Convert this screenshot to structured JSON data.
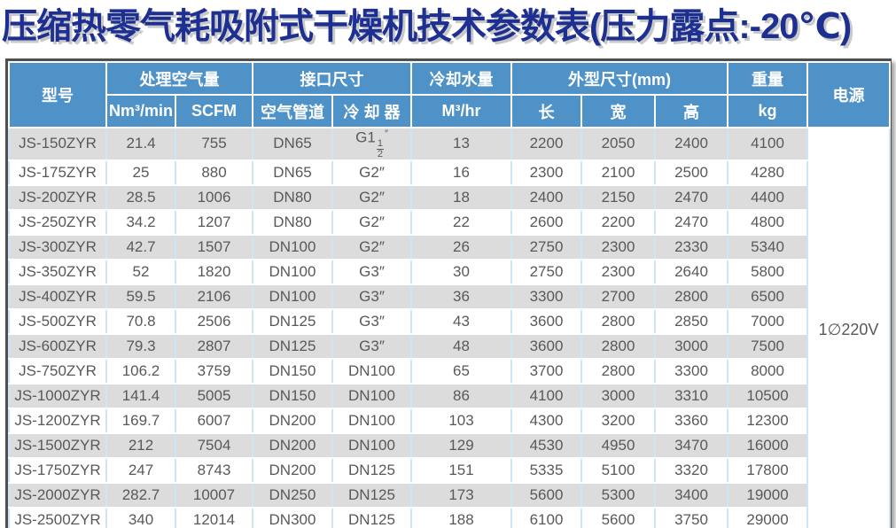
{
  "title": "压缩热零气耗吸附式干燥机技术参数表(压力露点:-20℃)",
  "colors": {
    "title_text": "#1d3091",
    "header_bg": "#4e92c8",
    "header_text": "#ffffff",
    "stripe_row": "#dcdcdc",
    "plain_row": "#ffffff",
    "data_text": "#595959",
    "grid_line": "#cde6f6",
    "outer_border": "#4f4f4f"
  },
  "table": {
    "headers": {
      "model": "型号",
      "air_capacity": "处理空气量",
      "air_units": [
        "Nm³/min",
        "SCFM"
      ],
      "interface": "接口尺寸",
      "interface_subs": [
        "空气管道",
        "冷 却 器"
      ],
      "cooling_water": "冷却水量",
      "cooling_water_unit": "M³/hr",
      "dimensions": "外型尺寸(mm)",
      "dimension_subs": [
        "长",
        "宽",
        "高"
      ],
      "weight": "重量",
      "weight_unit": "kg",
      "power": "电源"
    },
    "power_value": "1∅220V",
    "columns": [
      "model",
      "nm3-min",
      "scfm",
      "air-pipe",
      "cooler",
      "water",
      "length",
      "width",
      "height",
      "weight-kg"
    ],
    "rows": [
      [
        "JS-150ZYR",
        "21.4",
        "755",
        "DN65",
        "G1½″",
        "13",
        "2200",
        "2050",
        "2400",
        "4100"
      ],
      [
        "JS-175ZYR",
        "25",
        "880",
        "DN65",
        "G2″",
        "16",
        "2300",
        "2100",
        "2500",
        "4280"
      ],
      [
        "JS-200ZYR",
        "28.5",
        "1006",
        "DN80",
        "G2″",
        "18",
        "2400",
        "2150",
        "2470",
        "4400"
      ],
      [
        "JS-250ZYR",
        "34.2",
        "1207",
        "DN80",
        "G2″",
        "22",
        "2600",
        "2200",
        "2470",
        "4800"
      ],
      [
        "JS-300ZYR",
        "42.7",
        "1507",
        "DN100",
        "G2″",
        "26",
        "2750",
        "2300",
        "2330",
        "5340"
      ],
      [
        "JS-350ZYR",
        "52",
        "1820",
        "DN100",
        "G3″",
        "30",
        "2750",
        "2300",
        "2640",
        "5800"
      ],
      [
        "JS-400ZYR",
        "59.5",
        "2106",
        "DN100",
        "G3″",
        "36",
        "3300",
        "2700",
        "2800",
        "6500"
      ],
      [
        "JS-500ZYR",
        "70.8",
        "2506",
        "DN125",
        "G3″",
        "43",
        "3600",
        "2800",
        "2850",
        "7000"
      ],
      [
        "JS-600ZYR",
        "79.3",
        "2807",
        "DN125",
        "G3″",
        "48",
        "3600",
        "2800",
        "3000",
        "7500"
      ],
      [
        "JS-750ZYR",
        "106.2",
        "3759",
        "DN150",
        "DN100",
        "65",
        "3700",
        "2800",
        "3300",
        "8000"
      ],
      [
        "JS-1000ZYR",
        "141.4",
        "5005",
        "DN150",
        "DN100",
        "86",
        "4100",
        "3000",
        "3310",
        "10500"
      ],
      [
        "JS-1200ZYR",
        "169.7",
        "6007",
        "DN200",
        "DN100",
        "103",
        "4300",
        "3200",
        "3360",
        "12300"
      ],
      [
        "JS-1500ZYR",
        "212",
        "7504",
        "DN200",
        "DN100",
        "129",
        "4530",
        "4950",
        "3470",
        "16000"
      ],
      [
        "JS-1750ZYR",
        "247",
        "8743",
        "DN200",
        "DN125",
        "151",
        "5335",
        "5100",
        "3320",
        "17800"
      ],
      [
        "JS-2000ZYR",
        "282.7",
        "10007",
        "DN250",
        "DN125",
        "173",
        "5600",
        "5300",
        "3400",
        "19000"
      ],
      [
        "JS-2500ZYR",
        "340",
        "12014",
        "DN300",
        "DN125",
        "188",
        "6100",
        "5600",
        "3750",
        "29000"
      ]
    ]
  }
}
